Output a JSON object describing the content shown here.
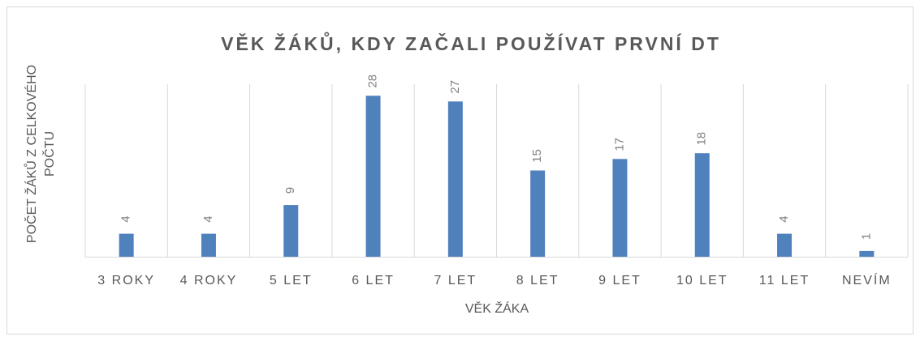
{
  "chart_data": {
    "type": "bar",
    "title": "VĚK ŽÁKŮ, KDY ZAČALI POUŽÍVAT PRVNÍ DT",
    "xlabel": "VĚK ŽÁKA",
    "ylabel": [
      "POČET ŽÁKŮ Z CELKOVÉHO",
      "POČTU"
    ],
    "categories": [
      "3 ROKY",
      "4 ROKY",
      "5 LET",
      "6 LET",
      "7 LET",
      "8 LET",
      "9 LET",
      "10 LET",
      "11 LET",
      "NEVÍM"
    ],
    "values": [
      4,
      4,
      9,
      28,
      27,
      15,
      17,
      18,
      4,
      1
    ],
    "color": "#4f81bd",
    "ylim": [
      0,
      30
    ],
    "grid": true
  }
}
